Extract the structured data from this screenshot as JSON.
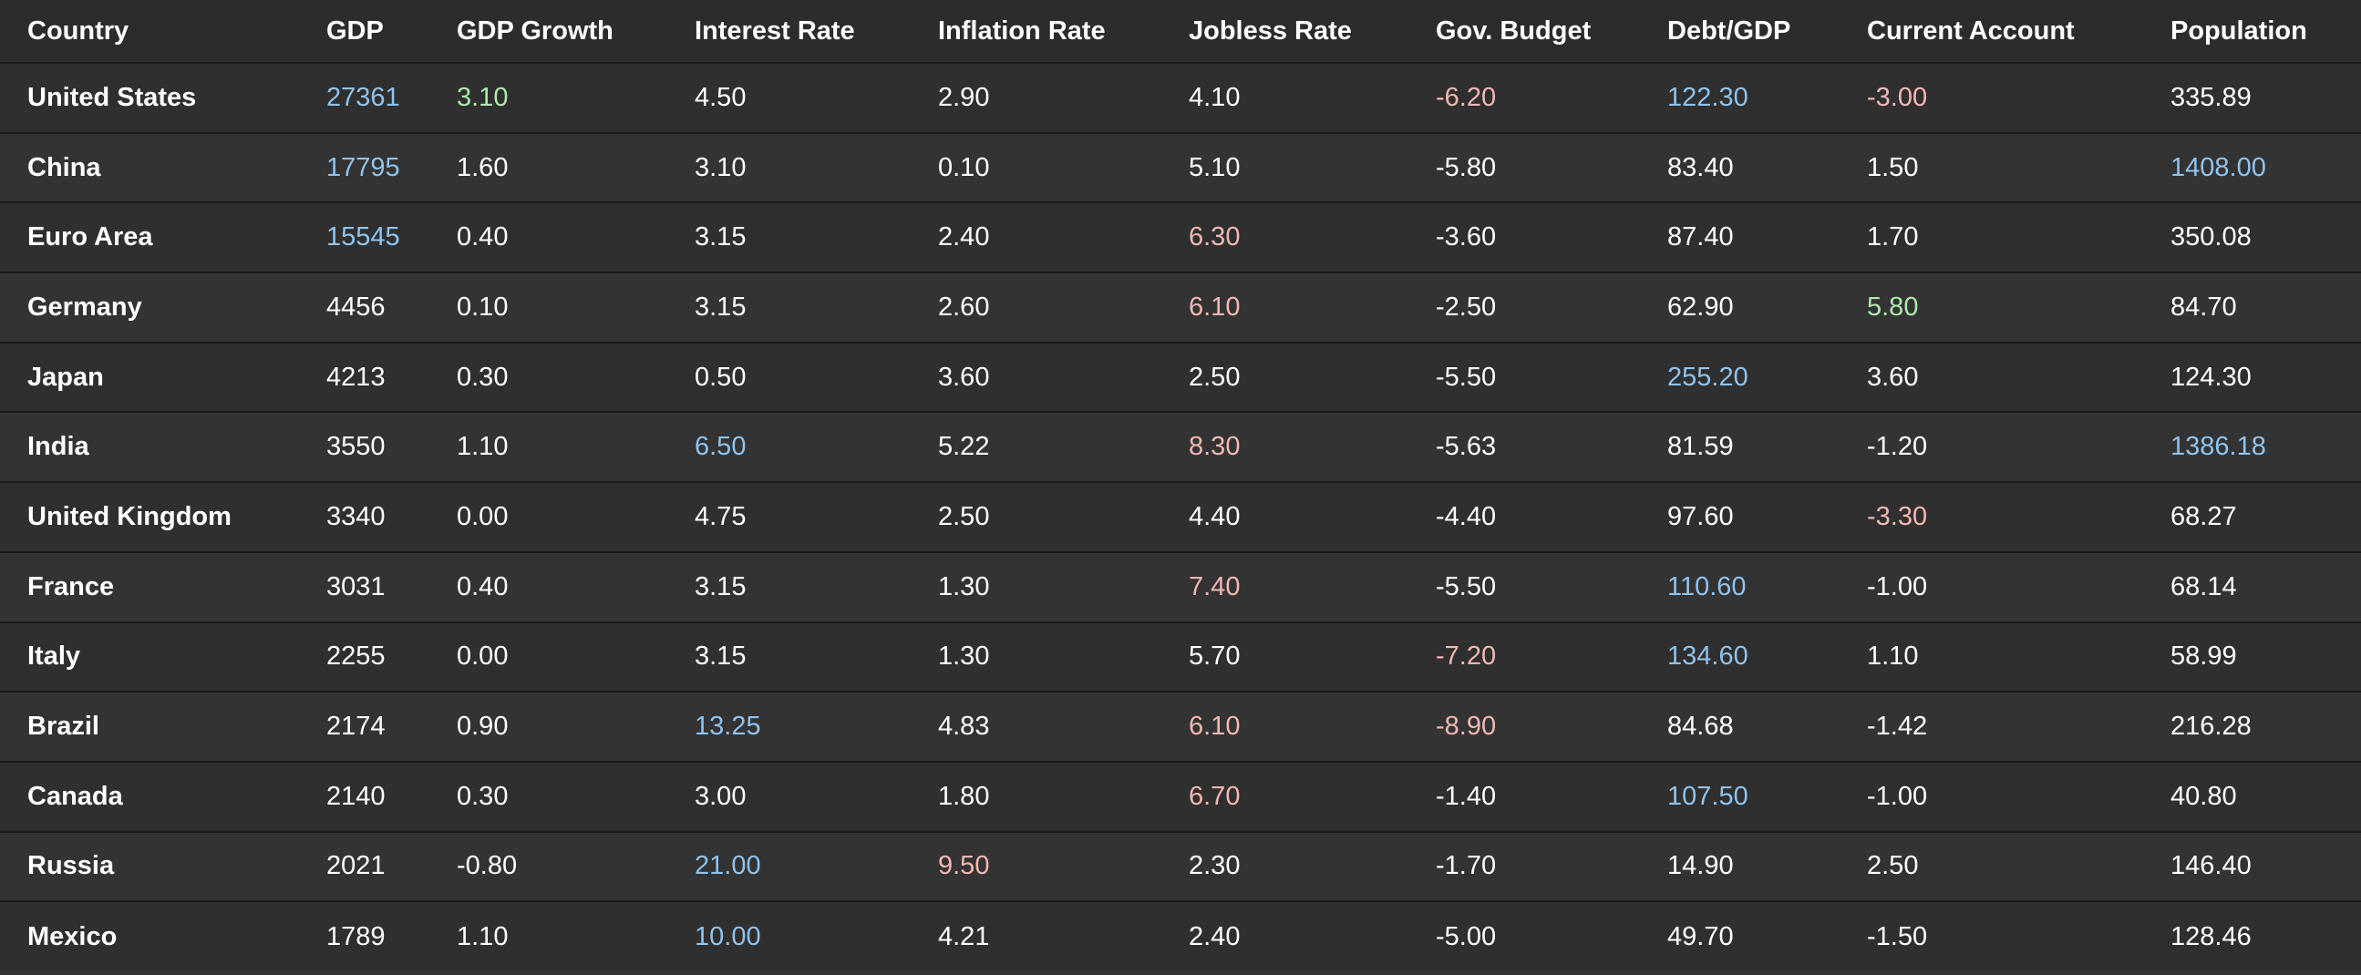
{
  "colors": {
    "default": "#ffffff",
    "blue": "#8fc3ee",
    "green": "#aee8ae",
    "red": "#f2b8b2",
    "background": "#333333"
  },
  "columns": [
    "Country",
    "GDP",
    "GDP Growth",
    "Interest Rate",
    "Inflation Rate",
    "Jobless Rate",
    "Gov. Budget",
    "Debt/GDP",
    "Current Account",
    "Population"
  ],
  "rows": [
    {
      "cells": [
        [
          "United States",
          "default"
        ],
        [
          "27361",
          "blue"
        ],
        [
          "3.10",
          "green"
        ],
        [
          "4.50",
          "default"
        ],
        [
          "2.90",
          "default"
        ],
        [
          "4.10",
          "default"
        ],
        [
          "-6.20",
          "red"
        ],
        [
          "122.30",
          "blue"
        ],
        [
          "-3.00",
          "red"
        ],
        [
          "335.89",
          "default"
        ]
      ]
    },
    {
      "cells": [
        [
          "China",
          "default"
        ],
        [
          "17795",
          "blue"
        ],
        [
          "1.60",
          "default"
        ],
        [
          "3.10",
          "default"
        ],
        [
          "0.10",
          "default"
        ],
        [
          "5.10",
          "default"
        ],
        [
          "-5.80",
          "default"
        ],
        [
          "83.40",
          "default"
        ],
        [
          "1.50",
          "default"
        ],
        [
          "1408.00",
          "blue"
        ]
      ]
    },
    {
      "cells": [
        [
          "Euro Area",
          "default"
        ],
        [
          "15545",
          "blue"
        ],
        [
          "0.40",
          "default"
        ],
        [
          "3.15",
          "default"
        ],
        [
          "2.40",
          "default"
        ],
        [
          "6.30",
          "red"
        ],
        [
          "-3.60",
          "default"
        ],
        [
          "87.40",
          "default"
        ],
        [
          "1.70",
          "default"
        ],
        [
          "350.08",
          "default"
        ]
      ]
    },
    {
      "cells": [
        [
          "Germany",
          "default"
        ],
        [
          "4456",
          "default"
        ],
        [
          "0.10",
          "default"
        ],
        [
          "3.15",
          "default"
        ],
        [
          "2.60",
          "default"
        ],
        [
          "6.10",
          "red"
        ],
        [
          "-2.50",
          "default"
        ],
        [
          "62.90",
          "default"
        ],
        [
          "5.80",
          "green"
        ],
        [
          "84.70",
          "default"
        ]
      ]
    },
    {
      "cells": [
        [
          "Japan",
          "default"
        ],
        [
          "4213",
          "default"
        ],
        [
          "0.30",
          "default"
        ],
        [
          "0.50",
          "default"
        ],
        [
          "3.60",
          "default"
        ],
        [
          "2.50",
          "default"
        ],
        [
          "-5.50",
          "default"
        ],
        [
          "255.20",
          "blue"
        ],
        [
          "3.60",
          "default"
        ],
        [
          "124.30",
          "default"
        ]
      ]
    },
    {
      "cells": [
        [
          "India",
          "default"
        ],
        [
          "3550",
          "default"
        ],
        [
          "1.10",
          "default"
        ],
        [
          "6.50",
          "blue"
        ],
        [
          "5.22",
          "default"
        ],
        [
          "8.30",
          "red"
        ],
        [
          "-5.63",
          "default"
        ],
        [
          "81.59",
          "default"
        ],
        [
          "-1.20",
          "default"
        ],
        [
          "1386.18",
          "blue"
        ]
      ]
    },
    {
      "cells": [
        [
          "United Kingdom",
          "default"
        ],
        [
          "3340",
          "default"
        ],
        [
          "0.00",
          "default"
        ],
        [
          "4.75",
          "default"
        ],
        [
          "2.50",
          "default"
        ],
        [
          "4.40",
          "default"
        ],
        [
          "-4.40",
          "default"
        ],
        [
          "97.60",
          "default"
        ],
        [
          "-3.30",
          "red"
        ],
        [
          "68.27",
          "default"
        ]
      ]
    },
    {
      "cells": [
        [
          "France",
          "default"
        ],
        [
          "3031",
          "default"
        ],
        [
          "0.40",
          "default"
        ],
        [
          "3.15",
          "default"
        ],
        [
          "1.30",
          "default"
        ],
        [
          "7.40",
          "red"
        ],
        [
          "-5.50",
          "default"
        ],
        [
          "110.60",
          "blue"
        ],
        [
          "-1.00",
          "default"
        ],
        [
          "68.14",
          "default"
        ]
      ]
    },
    {
      "cells": [
        [
          "Italy",
          "default"
        ],
        [
          "2255",
          "default"
        ],
        [
          "0.00",
          "default"
        ],
        [
          "3.15",
          "default"
        ],
        [
          "1.30",
          "default"
        ],
        [
          "5.70",
          "default"
        ],
        [
          "-7.20",
          "red"
        ],
        [
          "134.60",
          "blue"
        ],
        [
          "1.10",
          "default"
        ],
        [
          "58.99",
          "default"
        ]
      ]
    },
    {
      "cells": [
        [
          "Brazil",
          "default"
        ],
        [
          "2174",
          "default"
        ],
        [
          "0.90",
          "default"
        ],
        [
          "13.25",
          "blue"
        ],
        [
          "4.83",
          "default"
        ],
        [
          "6.10",
          "red"
        ],
        [
          "-8.90",
          "red"
        ],
        [
          "84.68",
          "default"
        ],
        [
          "-1.42",
          "default"
        ],
        [
          "216.28",
          "default"
        ]
      ]
    },
    {
      "cells": [
        [
          "Canada",
          "default"
        ],
        [
          "2140",
          "default"
        ],
        [
          "0.30",
          "default"
        ],
        [
          "3.00",
          "default"
        ],
        [
          "1.80",
          "default"
        ],
        [
          "6.70",
          "red"
        ],
        [
          "-1.40",
          "default"
        ],
        [
          "107.50",
          "blue"
        ],
        [
          "-1.00",
          "default"
        ],
        [
          "40.80",
          "default"
        ]
      ]
    },
    {
      "cells": [
        [
          "Russia",
          "default"
        ],
        [
          "2021",
          "default"
        ],
        [
          "-0.80",
          "default"
        ],
        [
          "21.00",
          "blue"
        ],
        [
          "9.50",
          "red"
        ],
        [
          "2.30",
          "default"
        ],
        [
          "-1.70",
          "default"
        ],
        [
          "14.90",
          "default"
        ],
        [
          "2.50",
          "default"
        ],
        [
          "146.40",
          "default"
        ]
      ]
    },
    {
      "cells": [
        [
          "Mexico",
          "default"
        ],
        [
          "1789",
          "default"
        ],
        [
          "1.10",
          "default"
        ],
        [
          "10.00",
          "blue"
        ],
        [
          "4.21",
          "default"
        ],
        [
          "2.40",
          "default"
        ],
        [
          "-5.00",
          "default"
        ],
        [
          "49.70",
          "default"
        ],
        [
          "-1.50",
          "default"
        ],
        [
          "128.46",
          "default"
        ]
      ]
    }
  ]
}
